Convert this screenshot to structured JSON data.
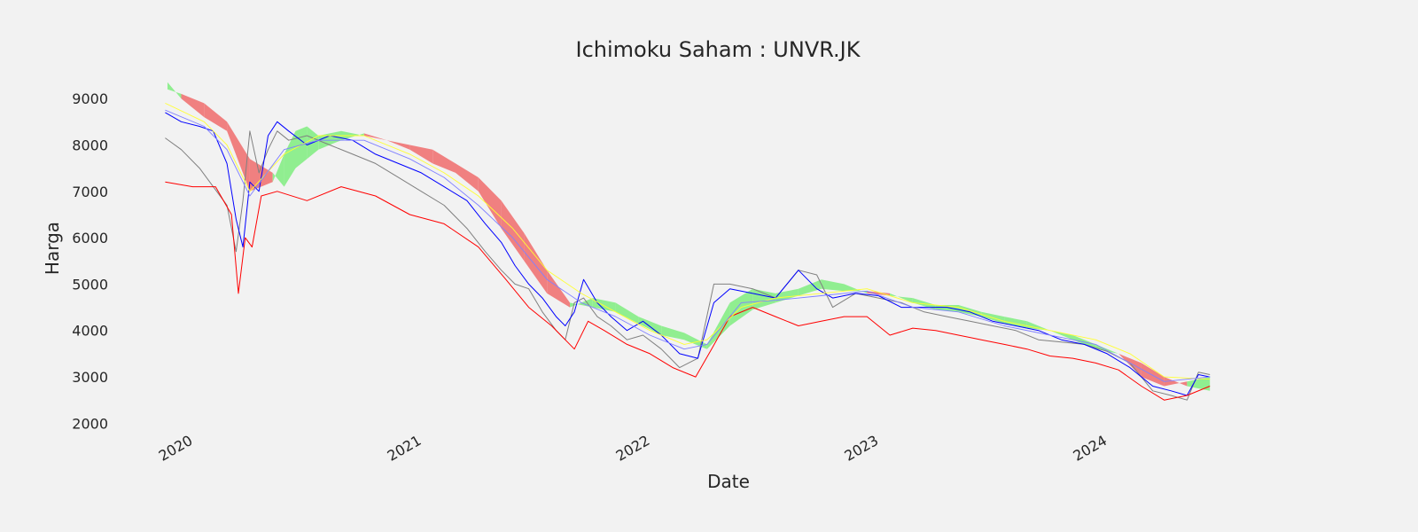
{
  "chart_data": {
    "type": "line",
    "title": "Ichimoku Saham : UNVR.JK",
    "xlabel": "Date",
    "ylabel": "Harga",
    "x_ticks": [
      {
        "label": "2020",
        "value": 2020.0
      },
      {
        "label": "2021",
        "value": 2021.0
      },
      {
        "label": "2022",
        "value": 2022.0
      },
      {
        "label": "2023",
        "value": 2023.0
      },
      {
        "label": "2024",
        "value": 2024.0
      }
    ],
    "y_ticks": [
      2000,
      3000,
      4000,
      5000,
      6000,
      7000,
      8000,
      9000
    ],
    "xlim": [
      2019.75,
      2025.1
    ],
    "ylim": [
      1950,
      9500
    ],
    "grid": false,
    "legend": "none",
    "series": [
      {
        "color": "#808080",
        "x": [
          2019.93,
          2020.0,
          2020.08,
          2020.14,
          2020.2,
          2020.24,
          2020.27,
          2020.3,
          2020.34,
          2020.38,
          2020.42,
          2020.47,
          2020.55,
          2020.65,
          2020.75,
          2020.85,
          2020.95,
          2021.05,
          2021.15,
          2021.25,
          2021.33,
          2021.4,
          2021.46,
          2021.52,
          2021.58,
          2021.64,
          2021.68,
          2021.72,
          2021.76,
          2021.82,
          2021.88,
          2021.95,
          2022.02,
          2022.1,
          2022.18,
          2022.26,
          2022.33,
          2022.4,
          2022.5,
          2022.6,
          2022.7,
          2022.78,
          2022.85,
          2022.95,
          2023.05,
          2023.15,
          2023.25,
          2023.35,
          2023.45,
          2023.55,
          2023.65,
          2023.75,
          2023.85,
          2023.95,
          2024.05,
          2024.15,
          2024.25,
          2024.33,
          2024.4,
          2024.45,
          2024.5
        ],
        "y": [
          8150,
          7900,
          7500,
          7100,
          6700,
          5700,
          6800,
          8300,
          7400,
          7900,
          8300,
          8100,
          8200,
          8000,
          7800,
          7600,
          7300,
          7000,
          6700,
          6200,
          5700,
          5300,
          5000,
          4900,
          4400,
          4000,
          3800,
          4600,
          4700,
          4300,
          4100,
          3800,
          3900,
          3600,
          3200,
          3400,
          5000,
          5000,
          4900,
          4700,
          5300,
          5200,
          4500,
          4800,
          4700,
          4600,
          4400,
          4300,
          4200,
          4100,
          4000,
          3800,
          3750,
          3700,
          3550,
          3300,
          2700,
          2600,
          2500,
          3100,
          3050
        ]
      },
      {
        "color": "#0000ff",
        "x": [
          2019.93,
          2020.0,
          2020.08,
          2020.14,
          2020.2,
          2020.24,
          2020.27,
          2020.3,
          2020.34,
          2020.38,
          2020.42,
          2020.47,
          2020.55,
          2020.65,
          2020.75,
          2020.85,
          2020.95,
          2021.05,
          2021.15,
          2021.25,
          2021.33,
          2021.4,
          2021.46,
          2021.52,
          2021.58,
          2021.64,
          2021.68,
          2021.72,
          2021.76,
          2021.82,
          2021.88,
          2021.95,
          2022.02,
          2022.1,
          2022.18,
          2022.26,
          2022.33,
          2022.4,
          2022.5,
          2022.6,
          2022.7,
          2022.78,
          2022.85,
          2022.95,
          2023.05,
          2023.15,
          2023.25,
          2023.35,
          2023.45,
          2023.55,
          2023.65,
          2023.75,
          2023.85,
          2023.95,
          2024.05,
          2024.15,
          2024.25,
          2024.33,
          2024.4,
          2024.45,
          2024.5
        ],
        "y": [
          8700,
          8500,
          8400,
          8300,
          7600,
          6400,
          5800,
          7200,
          7000,
          8200,
          8500,
          8300,
          8000,
          8200,
          8100,
          7800,
          7600,
          7400,
          7100,
          6800,
          6300,
          5900,
          5400,
          5000,
          4700,
          4300,
          4100,
          4400,
          5100,
          4600,
          4300,
          4000,
          4200,
          3900,
          3500,
          3400,
          4600,
          4900,
          4800,
          4700,
          5300,
          4900,
          4700,
          4800,
          4750,
          4500,
          4500,
          4500,
          4400,
          4200,
          4100,
          4000,
          3800,
          3700,
          3500,
          3200,
          2800,
          2700,
          2600,
          3050,
          3000
        ]
      },
      {
        "color": "#ff0000",
        "x": [
          2019.93,
          2020.05,
          2020.15,
          2020.22,
          2020.25,
          2020.28,
          2020.31,
          2020.35,
          2020.42,
          2020.55,
          2020.7,
          2020.85,
          2021.0,
          2021.15,
          2021.3,
          2021.42,
          2021.52,
          2021.62,
          2021.72,
          2021.78,
          2021.85,
          2021.95,
          2022.05,
          2022.15,
          2022.25,
          2022.32,
          2022.4,
          2022.5,
          2022.6,
          2022.7,
          2022.8,
          2022.9,
          2023.0,
          2023.1,
          2023.2,
          2023.3,
          2023.4,
          2023.5,
          2023.6,
          2023.7,
          2023.8,
          2023.9,
          2024.0,
          2024.1,
          2024.2,
          2024.3,
          2024.4,
          2024.5
        ],
        "y": [
          7200,
          7100,
          7100,
          6500,
          4800,
          6000,
          5800,
          6900,
          7000,
          6800,
          7100,
          6900,
          6500,
          6300,
          5800,
          5100,
          4500,
          4100,
          3600,
          4200,
          4000,
          3700,
          3500,
          3200,
          3000,
          3600,
          4300,
          4500,
          4300,
          4100,
          4200,
          4300,
          4300,
          3900,
          4050,
          4000,
          3900,
          3800,
          3700,
          3600,
          3450,
          3400,
          3300,
          3150,
          2800,
          2500,
          2600,
          2800
        ]
      },
      {
        "color": "#ffff33",
        "x": [
          2019.93,
          2020.1,
          2020.2,
          2020.3,
          2020.45,
          2020.6,
          2020.8,
          2021.0,
          2021.15,
          2021.3,
          2021.45,
          2021.6,
          2021.75,
          2021.9,
          2022.05,
          2022.2,
          2022.3,
          2022.45,
          2022.6,
          2022.8,
          2023.0,
          2023.2,
          2023.4,
          2023.6,
          2023.8,
          2024.0,
          2024.15,
          2024.3,
          2024.5
        ],
        "y": [
          8900,
          8500,
          8000,
          7000,
          7800,
          8200,
          8200,
          7800,
          7400,
          6900,
          6200,
          5300,
          4800,
          4400,
          4000,
          3700,
          3800,
          4500,
          4700,
          4800,
          4900,
          4600,
          4500,
          4200,
          4000,
          3800,
          3500,
          3000,
          2950
        ]
      },
      {
        "color": "#8080ff",
        "x": [
          2019.93,
          2020.1,
          2020.2,
          2020.3,
          2020.45,
          2020.6,
          2020.8,
          2021.0,
          2021.15,
          2021.3,
          2021.45,
          2021.6,
          2021.75,
          2021.9,
          2022.05,
          2022.2,
          2022.3,
          2022.45,
          2022.6,
          2022.8,
          2023.0,
          2023.2,
          2023.4,
          2023.6,
          2023.8,
          2024.0,
          2024.15,
          2024.3,
          2024.5
        ],
        "y": [
          8750,
          8400,
          7900,
          6900,
          7900,
          8100,
          8100,
          7700,
          7300,
          6700,
          6000,
          5100,
          4600,
          4300,
          3900,
          3600,
          3700,
          4600,
          4650,
          4750,
          4850,
          4500,
          4400,
          4100,
          3900,
          3700,
          3300,
          2900,
          3000
        ]
      }
    ],
    "cloud": {
      "x": [
        2019.94,
        2020.0,
        2020.1,
        2020.2,
        2020.3,
        2020.4,
        2020.45,
        2020.5,
        2020.55,
        2020.6,
        2020.7,
        2020.8,
        2020.9,
        2021.0,
        2021.1,
        2021.2,
        2021.3,
        2021.4,
        2021.5,
        2021.6,
        2021.7,
        2021.8,
        2021.9,
        2022.0,
        2022.1,
        2022.2,
        2022.3,
        2022.4,
        2022.5,
        2022.6,
        2022.7,
        2022.8,
        2022.9,
        2023.0,
        2023.1,
        2023.2,
        2023.3,
        2023.4,
        2023.5,
        2023.6,
        2023.7,
        2023.8,
        2023.9,
        2024.0,
        2024.1,
        2024.2,
        2024.3,
        2024.4,
        2024.5
      ],
      "span_a": [
        9350,
        9000,
        8600,
        8300,
        7000,
        7200,
        7800,
        8300,
        8400,
        8200,
        8300,
        8200,
        8100,
        7900,
        7600,
        7400,
        7000,
        6200,
        5500,
        4800,
        4500,
        4700,
        4600,
        4300,
        4100,
        3950,
        3700,
        4600,
        4900,
        4800,
        4900,
        5100,
        5000,
        4800,
        4750,
        4700,
        4550,
        4550,
        4400,
        4300,
        4200,
        4000,
        3900,
        3700,
        3500,
        3000,
        2800,
        2900,
        3000
      ],
      "span_b": [
        9200,
        9100,
        8900,
        8500,
        7700,
        7400,
        7100,
        7500,
        7700,
        7900,
        8100,
        8250,
        8100,
        8000,
        7900,
        7600,
        7300,
        6800,
        6100,
        5300,
        4600,
        4500,
        4400,
        4150,
        3900,
        3800,
        3600,
        4100,
        4450,
        4600,
        4750,
        4900,
        4850,
        4850,
        4800,
        4600,
        4450,
        4400,
        4300,
        4150,
        4050,
        4000,
        3800,
        3600,
        3500,
        3300,
        3000,
        2800,
        2700
      ],
      "bullish_color": "#90ee90",
      "bearish_color": "#f08080"
    }
  }
}
